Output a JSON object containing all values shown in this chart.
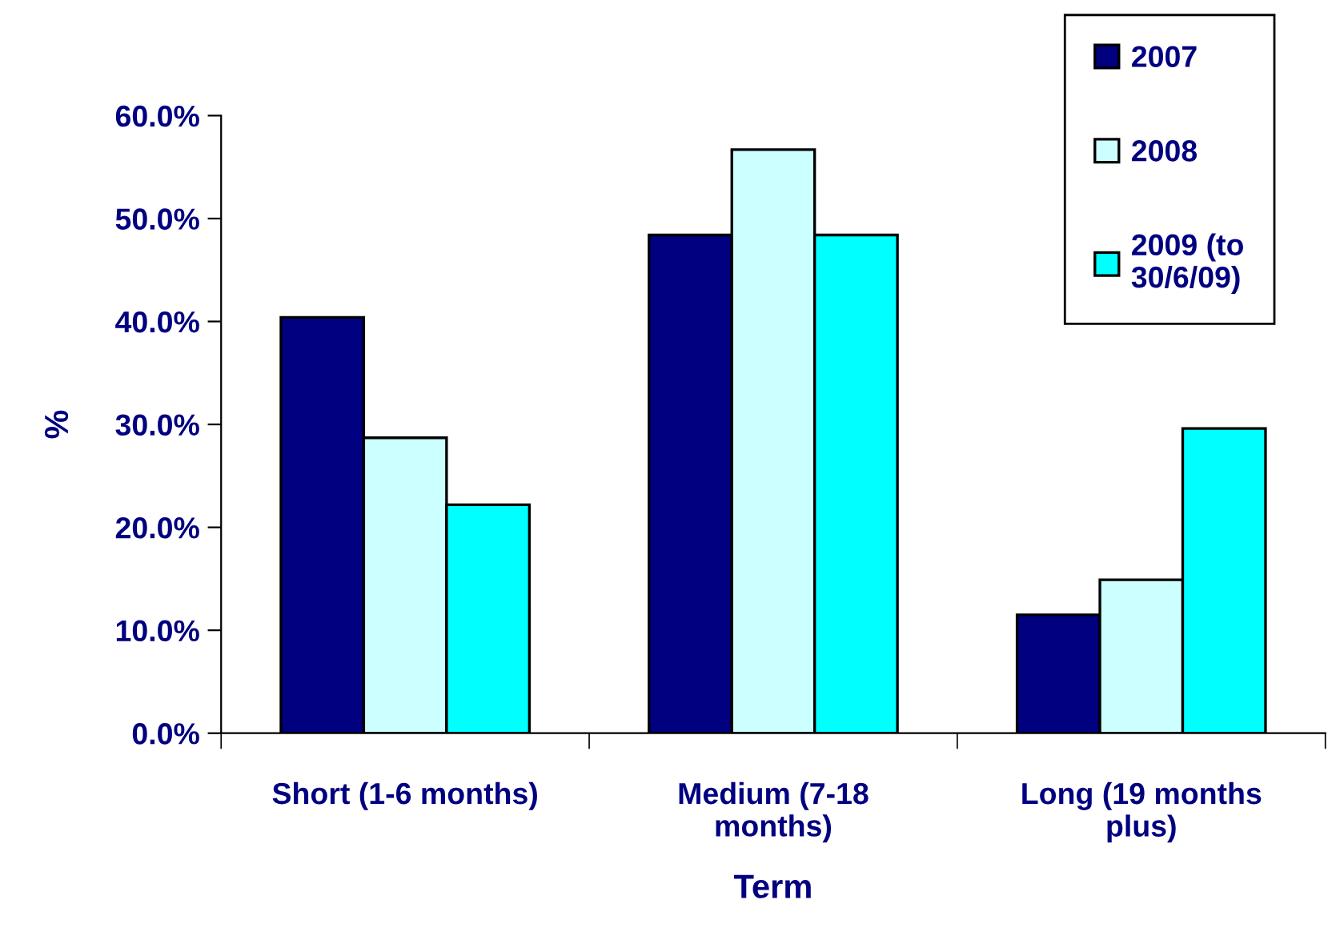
{
  "chart_data": {
    "type": "bar",
    "xlabel": "Term",
    "ylabel": "%",
    "categories": [
      "Short (1-6 months)",
      "Medium (7-18\nmonths)",
      "Long (19 months\nplus)"
    ],
    "series": [
      {
        "name": "2007",
        "color": "#000080",
        "values": [
          40.4,
          48.4,
          11.5
        ]
      },
      {
        "name": "2008",
        "color": "#ccffff",
        "values": [
          28.7,
          56.7,
          14.9
        ]
      },
      {
        "name": "2009 (to\n30/6/09)",
        "color": "#00ffff",
        "values": [
          22.2,
          48.4,
          29.6
        ]
      }
    ],
    "ylim": [
      0,
      60
    ],
    "yticks": [
      {
        "value": 0,
        "label": "0.0%"
      },
      {
        "value": 10,
        "label": "10.0%"
      },
      {
        "value": 20,
        "label": "20.0%"
      },
      {
        "value": 30,
        "label": "30.0%"
      },
      {
        "value": 40,
        "label": "40.0%"
      },
      {
        "value": 50,
        "label": "50.0%"
      },
      {
        "value": 60,
        "label": "60.0%"
      }
    ],
    "grid": false,
    "legend": "top right"
  }
}
